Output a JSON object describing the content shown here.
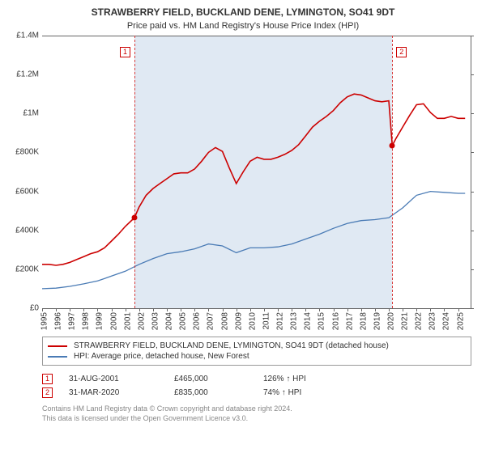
{
  "title": "STRAWBERRY FIELD, BUCKLAND DENE, LYMINGTON, SO41 9DT",
  "subtitle": "Price paid vs. HM Land Registry's House Price Index (HPI)",
  "chart": {
    "type": "line",
    "background_color": "#ffffff",
    "shade_color": "#dbe5f1",
    "axis_color": "#666666",
    "text_color": "#333333",
    "y": {
      "min": 0,
      "max": 1400000,
      "ticks": [
        {
          "v": 0,
          "label": "£0"
        },
        {
          "v": 200000,
          "label": "£200K"
        },
        {
          "v": 400000,
          "label": "£400K"
        },
        {
          "v": 600000,
          "label": "£600K"
        },
        {
          "v": 800000,
          "label": "£800K"
        },
        {
          "v": 1000000,
          "label": "£1M"
        },
        {
          "v": 1200000,
          "label": "£1.2M"
        },
        {
          "v": 1400000,
          "label": "£1.4M"
        }
      ],
      "label_fontsize": 10
    },
    "x": {
      "min": 1995,
      "max": 2025.9,
      "ticks": [
        1995,
        1996,
        1997,
        1998,
        1999,
        2000,
        2001,
        2002,
        2003,
        2004,
        2005,
        2006,
        2007,
        2008,
        2009,
        2010,
        2011,
        2012,
        2013,
        2014,
        2015,
        2016,
        2017,
        2018,
        2019,
        2020,
        2021,
        2022,
        2023,
        2024,
        2025
      ],
      "label_fontsize": 10
    },
    "shade_range": [
      2001.66,
      2020.25
    ],
    "series": [
      {
        "id": "property",
        "label": "STRAWBERRY FIELD, BUCKLAND DENE, LYMINGTON, SO41 9DT (detached house)",
        "color": "#cc0000",
        "line_width": 1.6,
        "anchor": {
          "year": 2001.66,
          "value": 465000
        },
        "data": [
          [
            1995.0,
            225000
          ],
          [
            1995.5,
            225000
          ],
          [
            1996.0,
            220000
          ],
          [
            1996.5,
            225000
          ],
          [
            1997.0,
            235000
          ],
          [
            1997.5,
            250000
          ],
          [
            1998.0,
            265000
          ],
          [
            1998.5,
            280000
          ],
          [
            1999.0,
            290000
          ],
          [
            1999.5,
            310000
          ],
          [
            2000.0,
            345000
          ],
          [
            2000.5,
            380000
          ],
          [
            2001.0,
            420000
          ],
          [
            2001.66,
            465000
          ],
          [
            2002.0,
            520000
          ],
          [
            2002.5,
            580000
          ],
          [
            2003.0,
            615000
          ],
          [
            2003.5,
            640000
          ],
          [
            2004.0,
            665000
          ],
          [
            2004.5,
            690000
          ],
          [
            2005.0,
            695000
          ],
          [
            2005.5,
            695000
          ],
          [
            2006.0,
            715000
          ],
          [
            2006.5,
            755000
          ],
          [
            2007.0,
            800000
          ],
          [
            2007.5,
            825000
          ],
          [
            2008.0,
            805000
          ],
          [
            2008.5,
            720000
          ],
          [
            2009.0,
            640000
          ],
          [
            2009.5,
            700000
          ],
          [
            2010.0,
            755000
          ],
          [
            2010.5,
            775000
          ],
          [
            2011.0,
            765000
          ],
          [
            2011.5,
            765000
          ],
          [
            2012.0,
            775000
          ],
          [
            2012.5,
            790000
          ],
          [
            2013.0,
            810000
          ],
          [
            2013.5,
            840000
          ],
          [
            2014.0,
            885000
          ],
          [
            2014.5,
            930000
          ],
          [
            2015.0,
            960000
          ],
          [
            2015.5,
            985000
          ],
          [
            2016.0,
            1015000
          ],
          [
            2016.5,
            1055000
          ],
          [
            2017.0,
            1085000
          ],
          [
            2017.5,
            1100000
          ],
          [
            2018.0,
            1095000
          ],
          [
            2018.5,
            1080000
          ],
          [
            2019.0,
            1065000
          ],
          [
            2019.5,
            1060000
          ],
          [
            2020.0,
            1065000
          ],
          [
            2020.25,
            835000
          ],
          [
            2020.5,
            870000
          ],
          [
            2021.0,
            930000
          ],
          [
            2021.5,
            990000
          ],
          [
            2022.0,
            1045000
          ],
          [
            2022.5,
            1050000
          ],
          [
            2023.0,
            1005000
          ],
          [
            2023.5,
            975000
          ],
          [
            2024.0,
            975000
          ],
          [
            2024.5,
            985000
          ],
          [
            2025.0,
            975000
          ],
          [
            2025.5,
            975000
          ]
        ]
      },
      {
        "id": "hpi",
        "label": "HPI: Average price, detached house, New Forest",
        "color": "#4a7bb5",
        "line_width": 1.3,
        "data": [
          [
            1995.0,
            100000
          ],
          [
            1996.0,
            103000
          ],
          [
            1997.0,
            112000
          ],
          [
            1998.0,
            125000
          ],
          [
            1999.0,
            140000
          ],
          [
            2000.0,
            165000
          ],
          [
            2001.0,
            190000
          ],
          [
            2002.0,
            225000
          ],
          [
            2003.0,
            255000
          ],
          [
            2004.0,
            280000
          ],
          [
            2005.0,
            290000
          ],
          [
            2006.0,
            305000
          ],
          [
            2007.0,
            330000
          ],
          [
            2008.0,
            320000
          ],
          [
            2009.0,
            285000
          ],
          [
            2010.0,
            310000
          ],
          [
            2011.0,
            310000
          ],
          [
            2012.0,
            315000
          ],
          [
            2013.0,
            330000
          ],
          [
            2014.0,
            355000
          ],
          [
            2015.0,
            380000
          ],
          [
            2016.0,
            410000
          ],
          [
            2017.0,
            435000
          ],
          [
            2018.0,
            450000
          ],
          [
            2019.0,
            455000
          ],
          [
            2020.0,
            465000
          ],
          [
            2021.0,
            515000
          ],
          [
            2022.0,
            580000
          ],
          [
            2023.0,
            600000
          ],
          [
            2024.0,
            595000
          ],
          [
            2025.0,
            590000
          ],
          [
            2025.5,
            590000
          ]
        ]
      }
    ],
    "events": [
      {
        "idx": "1",
        "year": 2001.66,
        "value": 465000
      },
      {
        "idx": "2",
        "year": 2020.25,
        "value": 835000
      }
    ]
  },
  "legend": {
    "border_color": "#999999"
  },
  "transactions": [
    {
      "idx": "1",
      "date": "31-AUG-2001",
      "price": "£465,000",
      "hpi": "126% ↑ HPI"
    },
    {
      "idx": "2",
      "date": "31-MAR-2020",
      "price": "£835,000",
      "hpi": "74% ↑ HPI"
    }
  ],
  "footer": {
    "line1": "Contains HM Land Registry data © Crown copyright and database right 2024.",
    "line2": "This data is licensed under the Open Government Licence v3.0."
  }
}
